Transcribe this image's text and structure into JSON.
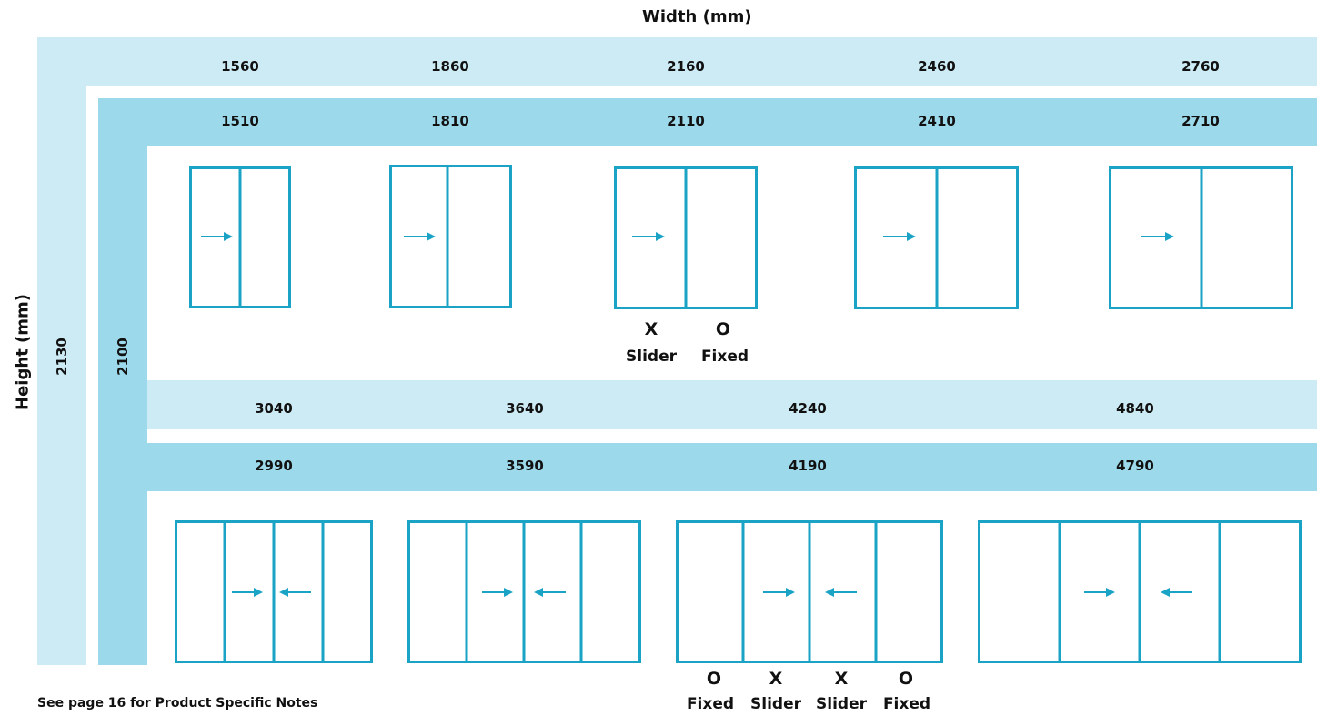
{
  "axes": {
    "width_title": "Width (mm)",
    "height_title": "Height (mm)"
  },
  "row1": {
    "outer_widths": [
      "1560",
      "1860",
      "2160",
      "2460",
      "2760"
    ],
    "inner_widths": [
      "1510",
      "1810",
      "2110",
      "2410",
      "2710"
    ]
  },
  "row2": {
    "outer_widths": [
      "3040",
      "3640",
      "4240",
      "4840"
    ],
    "inner_widths": [
      "2990",
      "3590",
      "4190",
      "4790"
    ]
  },
  "heights": {
    "outer": "2130",
    "inner": "2100"
  },
  "legend_two_panel": {
    "marks": [
      "X",
      "O"
    ],
    "roles": [
      "Slider",
      "Fixed"
    ]
  },
  "legend_four_panel": {
    "marks": [
      "O",
      "X",
      "X",
      "O"
    ],
    "roles": [
      "Fixed",
      "Slider",
      "Slider",
      "Fixed"
    ]
  },
  "footnote": "See page 16 for Product Specific Notes",
  "colors": {
    "frame": "#1aa3c4",
    "band_light": "#cdebf5",
    "band_dark": "#9cd9ea"
  }
}
